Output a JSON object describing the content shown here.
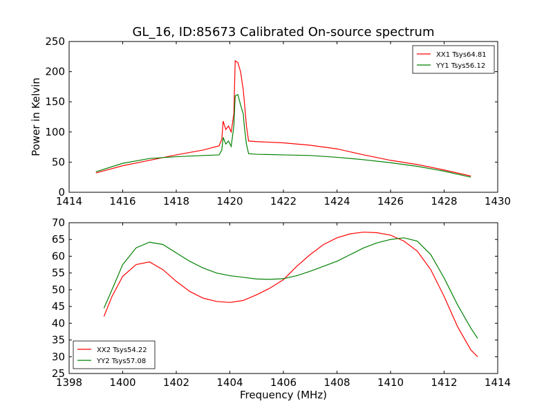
{
  "chart_data": [
    {
      "type": "line",
      "title": "GL_16, ID:85673 Calibrated On-source spectrum",
      "xlabel": "",
      "ylabel": "Power in Kelvin",
      "xlim": [
        1414,
        1430
      ],
      "ylim": [
        0,
        250
      ],
      "xticks": [
        1414,
        1416,
        1418,
        1420,
        1422,
        1424,
        1426,
        1428,
        1430
      ],
      "yticks": [
        0,
        50,
        100,
        150,
        200,
        250
      ],
      "legend": "top-right",
      "series": [
        {
          "name": "XX1 Tsys64.81",
          "color": "#ff0000",
          "x": [
            1415.0,
            1416.0,
            1417.0,
            1418.0,
            1419.0,
            1419.6,
            1419.7,
            1419.75,
            1419.85,
            1419.95,
            1420.05,
            1420.15,
            1420.2,
            1420.3,
            1420.4,
            1420.5,
            1420.55,
            1420.62,
            1420.7,
            1421.0,
            1422.0,
            1423.0,
            1424.0,
            1425.0,
            1426.0,
            1427.0,
            1428.0,
            1429.0
          ],
          "y": [
            32,
            44,
            53,
            62,
            70,
            77,
            88,
            118,
            104,
            110,
            100,
            130,
            218,
            215,
            200,
            170,
            146,
            110,
            85,
            84,
            82,
            78,
            72,
            62,
            53,
            46,
            37,
            27
          ]
        },
        {
          "name": "YY1 Tsys56.12",
          "color": "#008000",
          "x": [
            1415.0,
            1416.0,
            1417.0,
            1418.0,
            1419.0,
            1419.6,
            1419.7,
            1419.75,
            1419.85,
            1419.95,
            1420.05,
            1420.15,
            1420.2,
            1420.3,
            1420.4,
            1420.5,
            1420.55,
            1420.62,
            1420.7,
            1421.0,
            1422.0,
            1423.0,
            1424.0,
            1425.0,
            1426.0,
            1427.0,
            1428.0,
            1429.0
          ],
          "y": [
            34,
            48,
            56,
            59,
            61,
            62,
            70,
            91,
            80,
            85,
            76,
            110,
            160,
            162,
            145,
            130,
            105,
            80,
            64,
            63,
            62,
            61,
            58,
            54,
            49,
            43,
            35,
            25
          ]
        }
      ]
    },
    {
      "type": "line",
      "title": "",
      "xlabel": "Frequency (MHz)",
      "ylabel": "",
      "xlim": [
        1398,
        1414
      ],
      "ylim": [
        25,
        70
      ],
      "xticks": [
        1398,
        1400,
        1402,
        1404,
        1406,
        1408,
        1410,
        1412,
        1414
      ],
      "yticks": [
        25,
        30,
        35,
        40,
        45,
        50,
        55,
        60,
        65,
        70
      ],
      "legend": "bottom-left",
      "series": [
        {
          "name": "XX2 Tsys54.22",
          "color": "#ff0000",
          "x": [
            1399.3,
            1399.6,
            1400.0,
            1400.5,
            1401.0,
            1401.5,
            1402.0,
            1402.5,
            1403.0,
            1403.5,
            1404.0,
            1404.5,
            1405.0,
            1405.5,
            1406.0,
            1406.5,
            1407.0,
            1407.5,
            1408.0,
            1408.5,
            1409.0,
            1409.5,
            1410.0,
            1410.5,
            1411.0,
            1411.5,
            1412.0,
            1412.5,
            1413.0,
            1413.25
          ],
          "y": [
            42,
            48,
            54,
            57.5,
            58.3,
            56,
            52.5,
            49.5,
            47.5,
            46.5,
            46.2,
            46.8,
            48.5,
            50.5,
            53,
            57,
            60.5,
            63.5,
            65.5,
            66.7,
            67.2,
            67,
            66.3,
            64.5,
            61.5,
            56,
            48,
            39,
            32,
            30
          ]
        },
        {
          "name": "YY2 Tsys57.08",
          "color": "#008000",
          "x": [
            1399.3,
            1399.6,
            1400.0,
            1400.5,
            1401.0,
            1401.5,
            1402.0,
            1402.5,
            1403.0,
            1403.5,
            1404.0,
            1404.5,
            1405.0,
            1405.5,
            1406.0,
            1406.5,
            1407.0,
            1407.5,
            1408.0,
            1408.5,
            1409.0,
            1409.5,
            1410.0,
            1410.5,
            1411.0,
            1411.5,
            1412.0,
            1412.5,
            1413.0,
            1413.25
          ],
          "y": [
            44.5,
            50,
            57.5,
            62.5,
            64.2,
            63.5,
            61,
            58.5,
            56.5,
            55,
            54.2,
            53.7,
            53.2,
            53.1,
            53.3,
            54.2,
            55.5,
            57,
            58.5,
            60.5,
            62.5,
            64,
            65,
            65.5,
            64.5,
            60.5,
            53.5,
            45.5,
            38.5,
            35.5
          ]
        }
      ]
    }
  ]
}
